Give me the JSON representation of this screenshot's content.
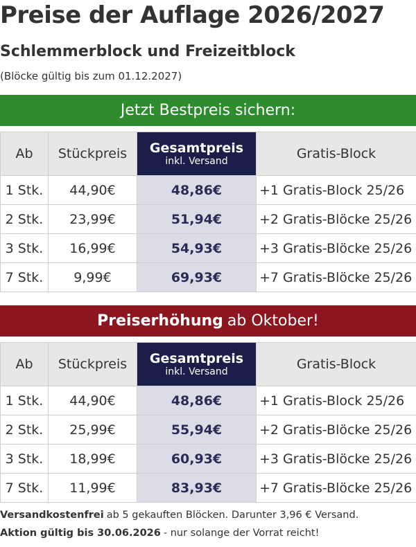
{
  "header": {
    "title": "Preise der Auflage 2026/2027",
    "subtitle": "Schlemmerblock und Freizeitblock",
    "note": "(Blöcke gültig bis zum 01.12.2027)"
  },
  "sections": [
    {
      "banner": {
        "strong": "Jetzt Bestpreis sichern:"
      },
      "table": {
        "columns": [
          "Ab",
          "Stückpreis",
          {
            "main": "Gesamtpreis",
            "sub": "inkl. Versand"
          },
          "Gratis-Block"
        ],
        "rows": [
          [
            "1 Stk.",
            "44,90€",
            "48,86€",
            "+1 Gratis-Block 25/26"
          ],
          [
            "2 Stk.",
            "23,99€",
            "51,94€",
            "+2 Gratis-Blöcke 25/26"
          ],
          [
            "3 Stk.",
            "16,99€",
            "54,93€",
            "+3 Gratis-Blöcke 25/26"
          ],
          [
            "7 Stk.",
            "9,99€",
            "69,93€",
            "+7 Gratis-Blöcke 25/26"
          ]
        ]
      }
    },
    {
      "banner": {
        "strong": "Preiserhöhung",
        "rest": "ab Oktober!"
      },
      "table": {
        "columns": [
          "Ab",
          "Stückpreis",
          {
            "main": "Gesamtpreis",
            "sub": "inkl. Versand"
          },
          "Gratis-Block"
        ],
        "rows": [
          [
            "1 Stk.",
            "44,90€",
            "48,86€",
            "+1 Gratis-Block 25/26"
          ],
          [
            "2 Stk.",
            "25,99€",
            "55,94€",
            "+2 Gratis-Blöcke 25/26"
          ],
          [
            "3 Stk.",
            "18,99€",
            "60,93€",
            "+3 Gratis-Blöcke 25/26"
          ],
          [
            "7 Stk.",
            "11,99€",
            "83,93€",
            "+7 Gratis-Blöcke 25/26"
          ]
        ]
      }
    }
  ],
  "footer": [
    {
      "strong": "Versandkostenfrei",
      "rest": "ab 5 gekauften Blöcken. Darunter 3,96 € Versand."
    },
    {
      "strong": "Aktion gültig bis 30.06.2026",
      "rest": "- nur solange der Vorrat reicht!"
    }
  ]
}
